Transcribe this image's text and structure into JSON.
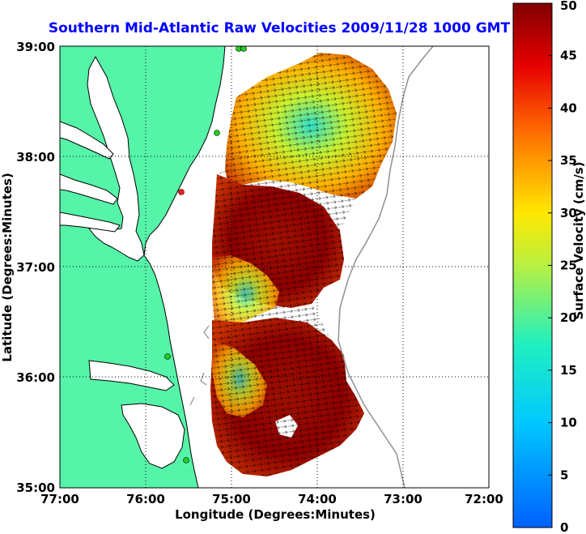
{
  "title": "Southern Mid-Atlantic Raw Velocities 2009/11/28 1000 GMT",
  "colors": {
    "title": "#0000ff",
    "land": "#55f4a8",
    "coast": "#000000",
    "sea": "#ffffff",
    "grid": "#000000",
    "station": "#20d020",
    "station_alt": "#ff2020"
  },
  "map": {
    "x_label": "Longitude (Degrees:Minutes)",
    "y_label": "Latitude (Degrees:Minutes)",
    "lon_ticks": [
      "77:00",
      "76:00",
      "75:00",
      "74:00",
      "73:00",
      "72:00"
    ],
    "lat_ticks": [
      "39:00",
      "38:00",
      "37:00",
      "36:00",
      "35:00"
    ],
    "lon_range": [
      -77,
      -72
    ],
    "lat_range": [
      35,
      39
    ],
    "grid": "dotted"
  },
  "colorbar": {
    "label": "Surface Velocity (cm/s)",
    "units": "cm/s",
    "ticks": [
      "0",
      "5",
      "10",
      "15",
      "20",
      "25",
      "30",
      "35",
      "40",
      "45",
      "50"
    ],
    "range": [
      0,
      50
    ],
    "colormap": "jet"
  }
}
